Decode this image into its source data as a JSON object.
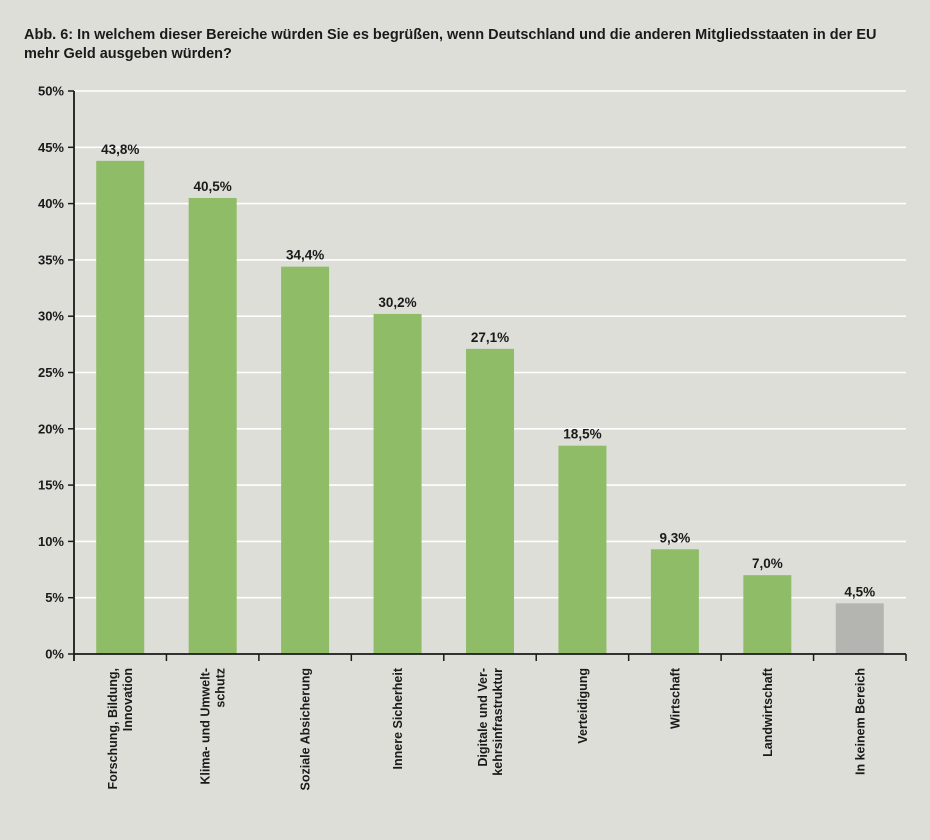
{
  "chart_data": {
    "type": "bar",
    "title": "Abb. 6: In welchem dieser Bereiche würden Sie es begrüßen, wenn Deutschland und die anderen Mitgliedsstaaten in der EU mehr Geld ausgeben würden?",
    "xlabel": "",
    "ylabel": "",
    "ylim": [
      0,
      50
    ],
    "yticks": [
      0,
      5,
      10,
      15,
      20,
      25,
      30,
      35,
      40,
      45,
      50
    ],
    "ytick_labels": [
      "0%",
      "5%",
      "10%",
      "15%",
      "20%",
      "25%",
      "30%",
      "35%",
      "40%",
      "45%",
      "50%"
    ],
    "grid": true,
    "categories": [
      [
        "Forschung, Bildung,",
        "Innovation"
      ],
      [
        "Klima- und Umwelt-",
        "schutz"
      ],
      [
        "Soziale Absicherung"
      ],
      [
        "Innere Sicherheit"
      ],
      [
        "Digitale und Ver-",
        "kehrsinfrastruktur"
      ],
      [
        "Verteidigung"
      ],
      [
        "Wirtschaft"
      ],
      [
        "Landwirtschaft"
      ],
      [
        "In keinem Bereich"
      ]
    ],
    "values": [
      43.8,
      40.5,
      34.4,
      30.2,
      27.1,
      18.5,
      9.3,
      7.0,
      4.5
    ],
    "value_labels": [
      "43,8%",
      "40,5%",
      "34,4%",
      "30,2%",
      "27,1%",
      "18,5%",
      "9,3%",
      "7,0%",
      "4,5%"
    ],
    "colors": [
      "#8fbc67",
      "#8fbc67",
      "#8fbc67",
      "#8fbc67",
      "#8fbc67",
      "#8fbc67",
      "#8fbc67",
      "#8fbc67",
      "#b4b4b0"
    ]
  }
}
